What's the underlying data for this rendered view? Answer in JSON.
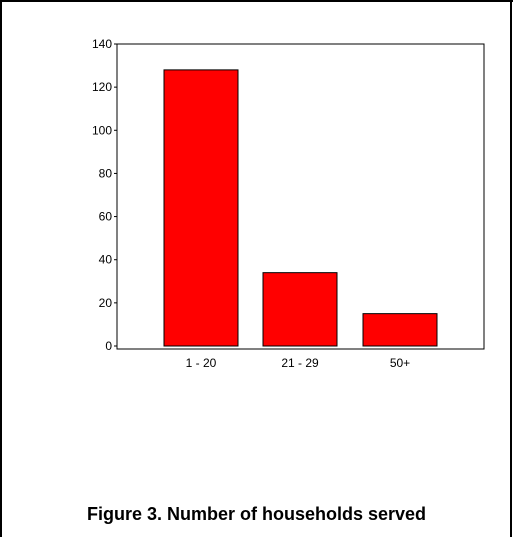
{
  "caption": "Figure 3. Number of households served",
  "colors": {
    "bar_fill": "#ff0000",
    "bar_stroke": "#000000",
    "axis": "#000000",
    "frame": "#000000"
  },
  "chart_data": {
    "type": "bar",
    "title": "",
    "xlabel": "",
    "ylabel": "",
    "categories": [
      "1 - 20",
      "21 - 29",
      "50+"
    ],
    "values": [
      128,
      34,
      15
    ],
    "ylim": [
      0,
      140
    ],
    "yticks": [
      0,
      20,
      40,
      60,
      80,
      100,
      120,
      140
    ],
    "grid": false,
    "legend": "none"
  }
}
